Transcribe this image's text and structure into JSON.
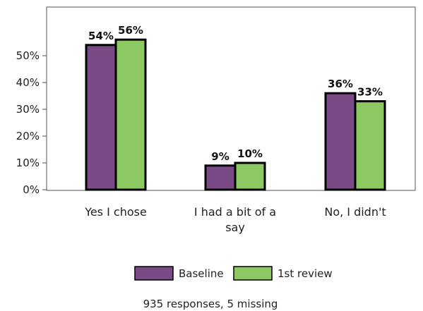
{
  "chart_data": {
    "type": "bar",
    "categories": [
      [
        "Yes I chose"
      ],
      [
        "I had a bit of a",
        "say"
      ],
      [
        "No, I didn't"
      ]
    ],
    "series": [
      {
        "name": "Baseline",
        "values": [
          54,
          9,
          36
        ],
        "color": "#7a4a86"
      },
      {
        "name": "1st review",
        "values": [
          56,
          10,
          33
        ],
        "color": "#8cc963"
      }
    ],
    "value_suffix": "%",
    "ylim": [
      0,
      60
    ],
    "yticks": [
      0,
      10,
      20,
      30,
      40,
      50
    ],
    "ytick_labels": [
      "0%",
      "10%",
      "20%",
      "30%",
      "40%",
      "50%"
    ],
    "grid": false,
    "legend_placement": "bottom-center",
    "note": "935 responses, 5 missing"
  }
}
